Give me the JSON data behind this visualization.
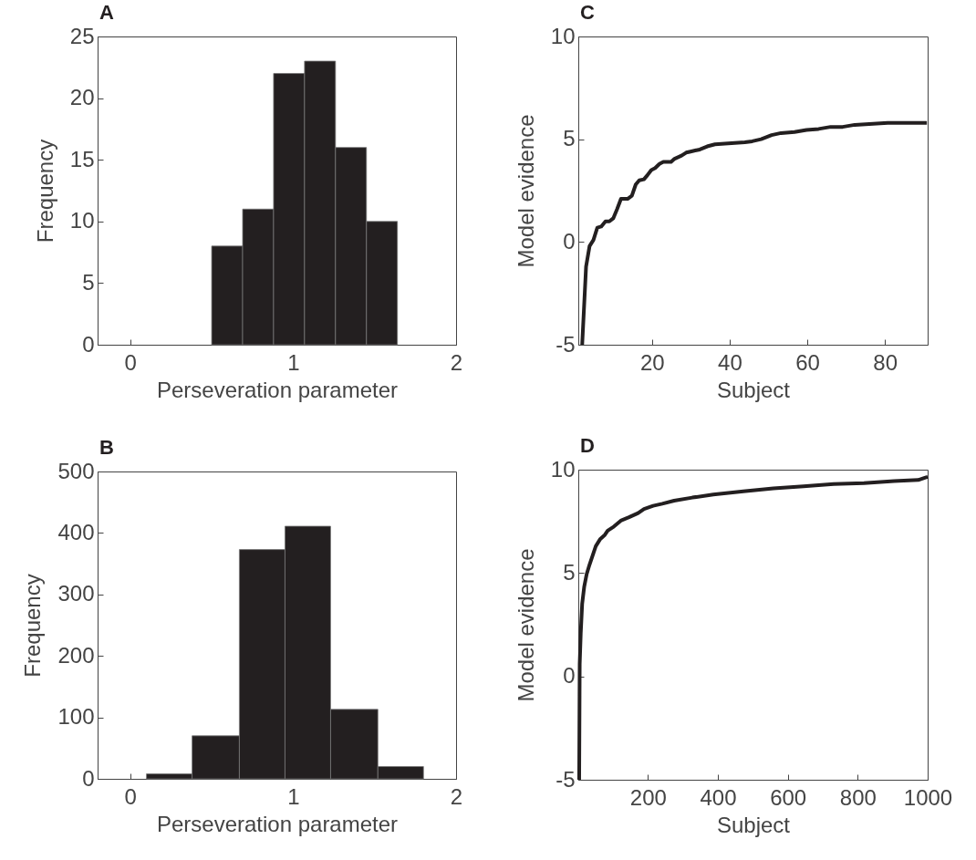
{
  "chart_data": [
    {
      "type": "histogram",
      "title": "A",
      "xlabel": "Perseveration parameter",
      "ylabel": "Frequency",
      "bins": [
        0.5,
        0.69,
        0.88,
        1.07,
        1.26,
        1.45,
        1.64
      ],
      "values": [
        8,
        11,
        22,
        23,
        16,
        10
      ],
      "color": "#231f20",
      "xlim": [
        -0.2,
        2
      ],
      "xticks": [
        0,
        1,
        2
      ],
      "ylim": [
        0,
        25
      ],
      "yticks": [
        0,
        5,
        10,
        15,
        20,
        25
      ],
      "grid": false
    },
    {
      "type": "line",
      "title": "C",
      "xlabel": "Subject",
      "ylabel": "Model evidence",
      "x": [
        2,
        3,
        3.9,
        4.9,
        5.9,
        6.9,
        8,
        9,
        10,
        11,
        12,
        13.7,
        14.8,
        15.8,
        16.7,
        17.9,
        18.8,
        19.8,
        20.8,
        21.9,
        22.9,
        24.9,
        25.8,
        27.6,
        28.8,
        29.9,
        31.1,
        32.3,
        34.2,
        36.2,
        39.6,
        43.9,
        45.8,
        48.1,
        50.8,
        53.2,
        56.7,
        59.8,
        62.9,
        66,
        69.1,
        72.2,
        76.9,
        80.7,
        86.1,
        90.8
      ],
      "series": [
        {
          "color": "#231f20",
          "values": [
            -5,
            -1.2,
            -0.2,
            0.1,
            0.7,
            0.75,
            1,
            1,
            1.15,
            1.6,
            2.1,
            2.1,
            2.25,
            2.8,
            3,
            3.05,
            3.25,
            3.5,
            3.6,
            3.8,
            3.9,
            3.9,
            4.05,
            4.2,
            4.35,
            4.4,
            4.45,
            4.5,
            4.65,
            4.75,
            4.8,
            4.85,
            4.9,
            5,
            5.2,
            5.3,
            5.35,
            5.45,
            5.5,
            5.6,
            5.6,
            5.7,
            5.75,
            5.8,
            5.8,
            5.8
          ]
        }
      ],
      "xlim": [
        1,
        91
      ],
      "xticks": [
        20,
        40,
        60,
        80
      ],
      "ylim": [
        -5,
        10
      ],
      "yticks": [
        -5,
        0,
        5,
        10
      ],
      "grid": false,
      "marker": "none",
      "line_style": "solid"
    },
    {
      "type": "histogram",
      "title": "B",
      "xlabel": "Perseveration parameter",
      "ylabel": "Frequency",
      "bins": [
        0.1,
        0.38,
        0.67,
        0.95,
        1.23,
        1.52,
        1.8
      ],
      "values": [
        8,
        70,
        373,
        411,
        113,
        20
      ],
      "color": "#231f20",
      "xlim": [
        -0.2,
        2
      ],
      "xticks": [
        0,
        1,
        2
      ],
      "ylim": [
        0,
        500
      ],
      "yticks": [
        0,
        100,
        200,
        300,
        400,
        500
      ],
      "grid": false
    },
    {
      "type": "line",
      "title": "D",
      "xlabel": "Subject",
      "ylabel": "Model evidence",
      "x": [
        3.5,
        5,
        8,
        12,
        18,
        25,
        33,
        42,
        51,
        64,
        77,
        85,
        103,
        124,
        146,
        172,
        189,
        215,
        241,
        275,
        327,
        387,
        473,
        559,
        645,
        731,
        818,
        904,
        973,
        990,
        1000
      ],
      "series": [
        {
          "color": "#231f20",
          "values": [
            -5,
            0.6,
            2.1,
            3.5,
            4.35,
            4.95,
            5.4,
            5.85,
            6.3,
            6.65,
            6.85,
            7.05,
            7.25,
            7.55,
            7.7,
            7.9,
            8.1,
            8.25,
            8.35,
            8.5,
            8.65,
            8.8,
            8.95,
            9.1,
            9.2,
            9.3,
            9.35,
            9.45,
            9.5,
            9.6,
            9.65
          ]
        }
      ],
      "xlim": [
        1,
        1000
      ],
      "xticks": [
        200,
        400,
        600,
        800,
        1000
      ],
      "ylim": [
        -5,
        10
      ],
      "yticks": [
        -5,
        0,
        5,
        10
      ],
      "grid": false,
      "marker": "none",
      "line_style": "solid"
    }
  ]
}
